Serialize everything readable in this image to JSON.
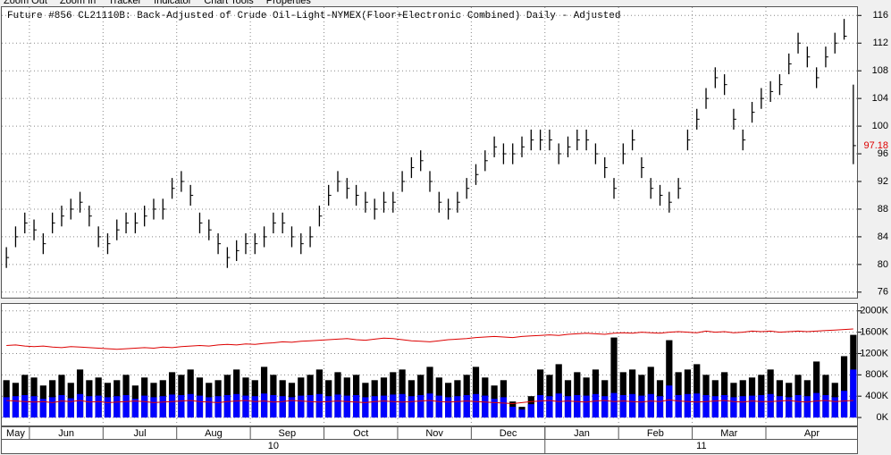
{
  "menu": [
    "Zoom Out",
    "Zoom In",
    "Tracker",
    "Indicator",
    "Chart Tools",
    "Properties"
  ],
  "chart_data": {
    "type": "ohlc",
    "title": "Future #856 CL21110B: Back-Adjusted of Crude Oil-Light-NYMEX(Floor+Electronic Combined) Daily -  Adjusted",
    "categories": [
      "May",
      null,
      null,
      "Jun",
      null,
      null,
      null,
      null,
      null,
      null,
      null,
      "Jul",
      null,
      null,
      null,
      null,
      null,
      null,
      null,
      "Aug",
      null,
      null,
      null,
      null,
      null,
      null,
      null,
      "Sep",
      null,
      null,
      null,
      null,
      null,
      null,
      null,
      "Oct",
      null,
      null,
      null,
      null,
      null,
      null,
      null,
      "Nov",
      null,
      null,
      null,
      null,
      null,
      null,
      null,
      "Dec",
      null,
      null,
      null,
      null,
      null,
      null,
      null,
      "Jan",
      null,
      null,
      null,
      null,
      null,
      null,
      null,
      "Feb",
      null,
      null,
      null,
      null,
      null,
      null,
      null,
      "Mar",
      null,
      null,
      null,
      null,
      null,
      null,
      null,
      "Apr",
      null,
      null,
      null,
      null,
      null,
      null,
      null,
      null,
      null
    ],
    "years": [
      "10",
      null,
      null,
      null,
      null,
      null,
      null,
      null,
      null,
      null,
      null,
      null,
      null,
      null,
      null,
      null,
      null,
      null,
      null,
      null,
      null,
      null,
      null,
      null,
      null,
      null,
      null,
      null,
      null,
      null,
      null,
      null,
      null,
      null,
      null,
      null,
      null,
      null,
      null,
      null,
      null,
      null,
      null,
      null,
      null,
      null,
      null,
      null,
      null,
      null,
      null,
      null,
      null,
      null,
      null,
      null,
      null,
      null,
      null,
      "11",
      null,
      null,
      null,
      null,
      null,
      null,
      null,
      null,
      null,
      null,
      null,
      null,
      null,
      null,
      null,
      null,
      null,
      null,
      null,
      null,
      null,
      null,
      null,
      null,
      null,
      null,
      null,
      null,
      null,
      null,
      null,
      null,
      null
    ],
    "high": [
      82.5,
      85.5,
      87.5,
      86.5,
      84.5,
      87.5,
      88.5,
      89.5,
      90.5,
      88.5,
      85.5,
      84.5,
      86.5,
      87.5,
      87.5,
      88.5,
      89.5,
      89.5,
      92.5,
      93.5,
      91.5,
      87.5,
      86.5,
      84.5,
      82.5,
      83.5,
      84.5,
      84.5,
      85.5,
      87.5,
      87.5,
      85.5,
      84.5,
      85.5,
      88.5,
      91.5,
      93.5,
      92.5,
      91.5,
      90.5,
      89.5,
      90.5,
      90.5,
      93.5,
      95.5,
      96.5,
      93.5,
      90.5,
      89.5,
      90.5,
      92.5,
      94.5,
      96.5,
      98.5,
      97.5,
      97.5,
      98.5,
      99.5,
      99.5,
      99.5,
      97.5,
      98.5,
      99.5,
      99.5,
      97.5,
      95.5,
      92.5,
      97.5,
      99.5,
      95.5,
      92.5,
      91.5,
      90.5,
      92.5,
      99.5,
      102.5,
      105.5,
      108.5,
      107.5,
      102.5,
      99.5,
      103.5,
      105.5,
      106.5,
      107.5,
      110.5,
      113.5,
      111.5,
      108.5,
      111.5,
      113.5,
      115.5,
      106
    ],
    "low": [
      79.5,
      82.5,
      84.5,
      83.5,
      81.5,
      84.5,
      85.5,
      86.5,
      87.5,
      85.5,
      82.5,
      81.5,
      83.5,
      84.5,
      84.5,
      85.5,
      86.5,
      86.5,
      89.5,
      90.5,
      88.5,
      84.5,
      83.5,
      81.5,
      79.5,
      80.5,
      81.5,
      81.5,
      82.5,
      84.5,
      84.5,
      82.5,
      81.5,
      82.5,
      85.5,
      88.5,
      90.5,
      89.5,
      88.5,
      87.5,
      86.5,
      87.5,
      87.5,
      90.5,
      92.5,
      93.5,
      90.5,
      87.5,
      86.5,
      87.5,
      89.5,
      91.5,
      93.5,
      95.5,
      94.5,
      94.5,
      95.5,
      96.5,
      96.5,
      96.5,
      94.5,
      95.5,
      96.5,
      96.5,
      94.5,
      92.5,
      89.5,
      94.5,
      96.5,
      92.5,
      89.5,
      88.5,
      87.5,
      89.5,
      96.5,
      99.5,
      102.5,
      105.5,
      104.5,
      99.5,
      96.5,
      100.5,
      102.5,
      103.5,
      104.5,
      107.5,
      110.5,
      108.5,
      105.5,
      108.5,
      110.5,
      112.5,
      94.5
    ],
    "close": [
      81,
      84,
      86,
      85,
      83,
      86,
      87,
      88,
      89,
      87,
      84,
      83,
      85,
      86,
      86,
      87,
      88,
      88,
      91,
      92,
      90,
      86,
      85,
      83,
      81,
      82,
      83,
      83,
      84,
      86,
      86,
      84,
      83,
      84,
      87,
      90,
      92,
      91,
      90,
      89,
      88,
      89,
      89,
      92,
      94,
      95,
      92,
      89,
      88,
      89,
      91,
      93,
      95,
      97,
      96,
      96,
      97,
      98,
      98,
      98,
      96,
      97,
      98,
      98,
      96,
      94,
      91,
      96,
      98,
      94,
      91,
      90,
      89,
      91,
      98,
      101,
      104,
      107,
      106,
      101,
      98,
      102,
      104,
      105,
      106,
      109,
      112,
      110,
      107,
      110,
      112,
      113,
      97.18
    ],
    "color": "#000000",
    "last_color": "#dd0000",
    "ylim": [
      75.2,
      117.2
    ],
    "yticks": [
      76,
      80,
      84,
      88,
      92,
      96,
      100,
      104,
      108,
      112,
      116
    ],
    "grid": true,
    "volume": {
      "ylim": [
        -150,
        2130
      ],
      "yticks": [
        {
          "value": 0,
          "label": "0K"
        },
        {
          "value": 400,
          "label": "400K"
        },
        {
          "value": 800,
          "label": "800K"
        },
        {
          "value": 1200,
          "label": "1200K"
        },
        {
          "value": 1600,
          "label": "1600K"
        },
        {
          "value": 2000,
          "label": "2000K"
        }
      ],
      "series": [
        {
          "type": "bar",
          "color": "#000000",
          "values": [
            700,
            650,
            800,
            750,
            600,
            700,
            800,
            650,
            900,
            700,
            750,
            650,
            700,
            800,
            600,
            750,
            650,
            700,
            850,
            800,
            900,
            750,
            650,
            700,
            800,
            900,
            750,
            700,
            950,
            800,
            700,
            650,
            750,
            800,
            900,
            700,
            850,
            750,
            800,
            650,
            700,
            750,
            850,
            900,
            700,
            800,
            950,
            750,
            650,
            700,
            800,
            950,
            750,
            600,
            700,
            300,
            200,
            400,
            900,
            800,
            1000,
            700,
            850,
            750,
            900,
            700,
            1500,
            850,
            900,
            800,
            950,
            700,
            1450,
            850,
            900,
            1000,
            800,
            700,
            850,
            650,
            700,
            750,
            800,
            900,
            700,
            650,
            800,
            700,
            1050,
            800,
            650,
            1150,
            1550
          ]
        },
        {
          "type": "bar",
          "color": "#0000ff",
          "values": [
            380,
            400,
            420,
            400,
            350,
            380,
            420,
            360,
            440,
            400,
            410,
            380,
            400,
            420,
            350,
            410,
            380,
            400,
            430,
            420,
            440,
            410,
            380,
            400,
            420,
            440,
            410,
            400,
            450,
            420,
            400,
            380,
            410,
            420,
            440,
            400,
            430,
            410,
            420,
            380,
            400,
            410,
            430,
            440,
            400,
            420,
            450,
            410,
            380,
            400,
            420,
            440,
            410,
            350,
            380,
            200,
            150,
            250,
            420,
            400,
            450,
            400,
            420,
            410,
            440,
            400,
            460,
            420,
            440,
            410,
            440,
            400,
            600,
            420,
            440,
            450,
            420,
            400,
            420,
            380,
            400,
            410,
            420,
            440,
            400,
            380,
            420,
            400,
            460,
            420,
            380,
            500,
            900
          ]
        },
        {
          "type": "line",
          "color": "#dd0000",
          "values": [
            1350,
            1360,
            1340,
            1330,
            1340,
            1320,
            1310,
            1330,
            1320,
            1310,
            1300,
            1290,
            1280,
            1290,
            1300,
            1310,
            1300,
            1320,
            1310,
            1330,
            1340,
            1350,
            1340,
            1360,
            1370,
            1360,
            1380,
            1370,
            1390,
            1400,
            1420,
            1410,
            1430,
            1440,
            1450,
            1460,
            1470,
            1480,
            1460,
            1450,
            1470,
            1490,
            1480,
            1460,
            1440,
            1430,
            1420,
            1440,
            1460,
            1470,
            1480,
            1500,
            1510,
            1520,
            1510,
            1500,
            1520,
            1530,
            1540,
            1550,
            1540,
            1560,
            1570,
            1580,
            1570,
            1560,
            1580,
            1590,
            1580,
            1600,
            1590,
            1580,
            1600,
            1610,
            1600,
            1590,
            1620,
            1600,
            1610,
            1590,
            1600,
            1620,
            1610,
            1620,
            1600,
            1610,
            1620,
            1610,
            1620,
            1630,
            1640,
            1650,
            1660
          ]
        },
        {
          "type": "line",
          "color": "#dd0000",
          "values": [
            320,
            310,
            300,
            290,
            300,
            280,
            310,
            300,
            320,
            290,
            300,
            280,
            290,
            300,
            310,
            300,
            280,
            290,
            300,
            310,
            320,
            300,
            290,
            280,
            300,
            310,
            320,
            300,
            310,
            290,
            300,
            320,
            310,
            300,
            290,
            300,
            310,
            300,
            290,
            280,
            300,
            310,
            300,
            290,
            300,
            310,
            320,
            300,
            290,
            300,
            310,
            300,
            290,
            280,
            270,
            260,
            280,
            300,
            310,
            320,
            300,
            310,
            300,
            290,
            310,
            320,
            300,
            310,
            300,
            290,
            310,
            300,
            330,
            310,
            300,
            290,
            300,
            310,
            320,
            300,
            290,
            310,
            300,
            300,
            310,
            320,
            300,
            290,
            310,
            320,
            300,
            310,
            320
          ]
        }
      ]
    }
  }
}
